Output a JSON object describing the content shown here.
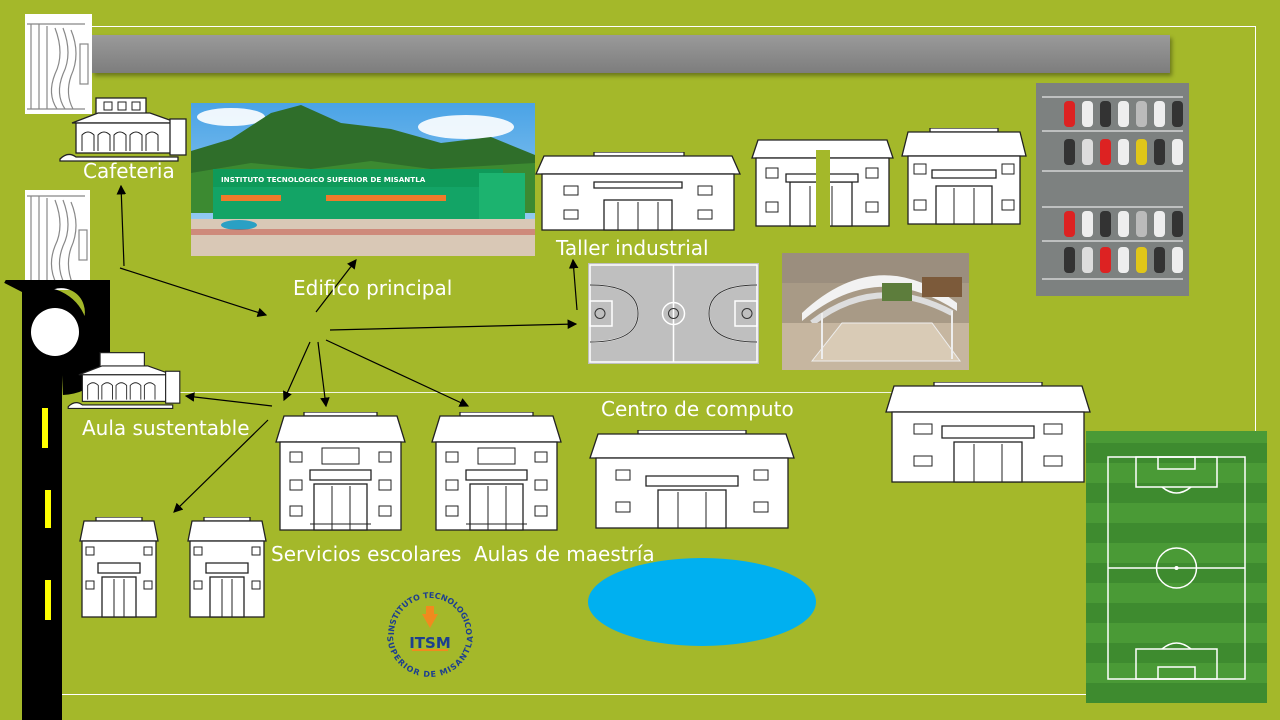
{
  "labels": {
    "cafeteria": "Cafeteria",
    "edificio_principal": "Edifico principal",
    "taller_industrial": "Taller industrial",
    "centro_computo": "Centro de computo",
    "aula_sustentable": "Aula sustentable",
    "servicios_escolares": "Servicios escolares",
    "aulas_maestria": "Aulas de maestría"
  },
  "photo": {
    "facade_sign": "INSTITUTO TECNOLOGICO SUPERIOR DE MISANTLA"
  },
  "logo": {
    "ring_top": "INSTITUTO TECNOLOGICO",
    "ring_bottom": "SUPERIOR DE MISANTLA",
    "initials": "ITSM"
  },
  "colors": {
    "background": "#a4b82a",
    "title_bar": "#8a8a8a",
    "pond": "#00b0f0",
    "road": "#000000",
    "road_marks": "#ffff00",
    "field": "#3f8f2e",
    "court": "#bfbfbf",
    "logo_blue": "#1d3f8f",
    "logo_orange": "#f18a1e"
  }
}
